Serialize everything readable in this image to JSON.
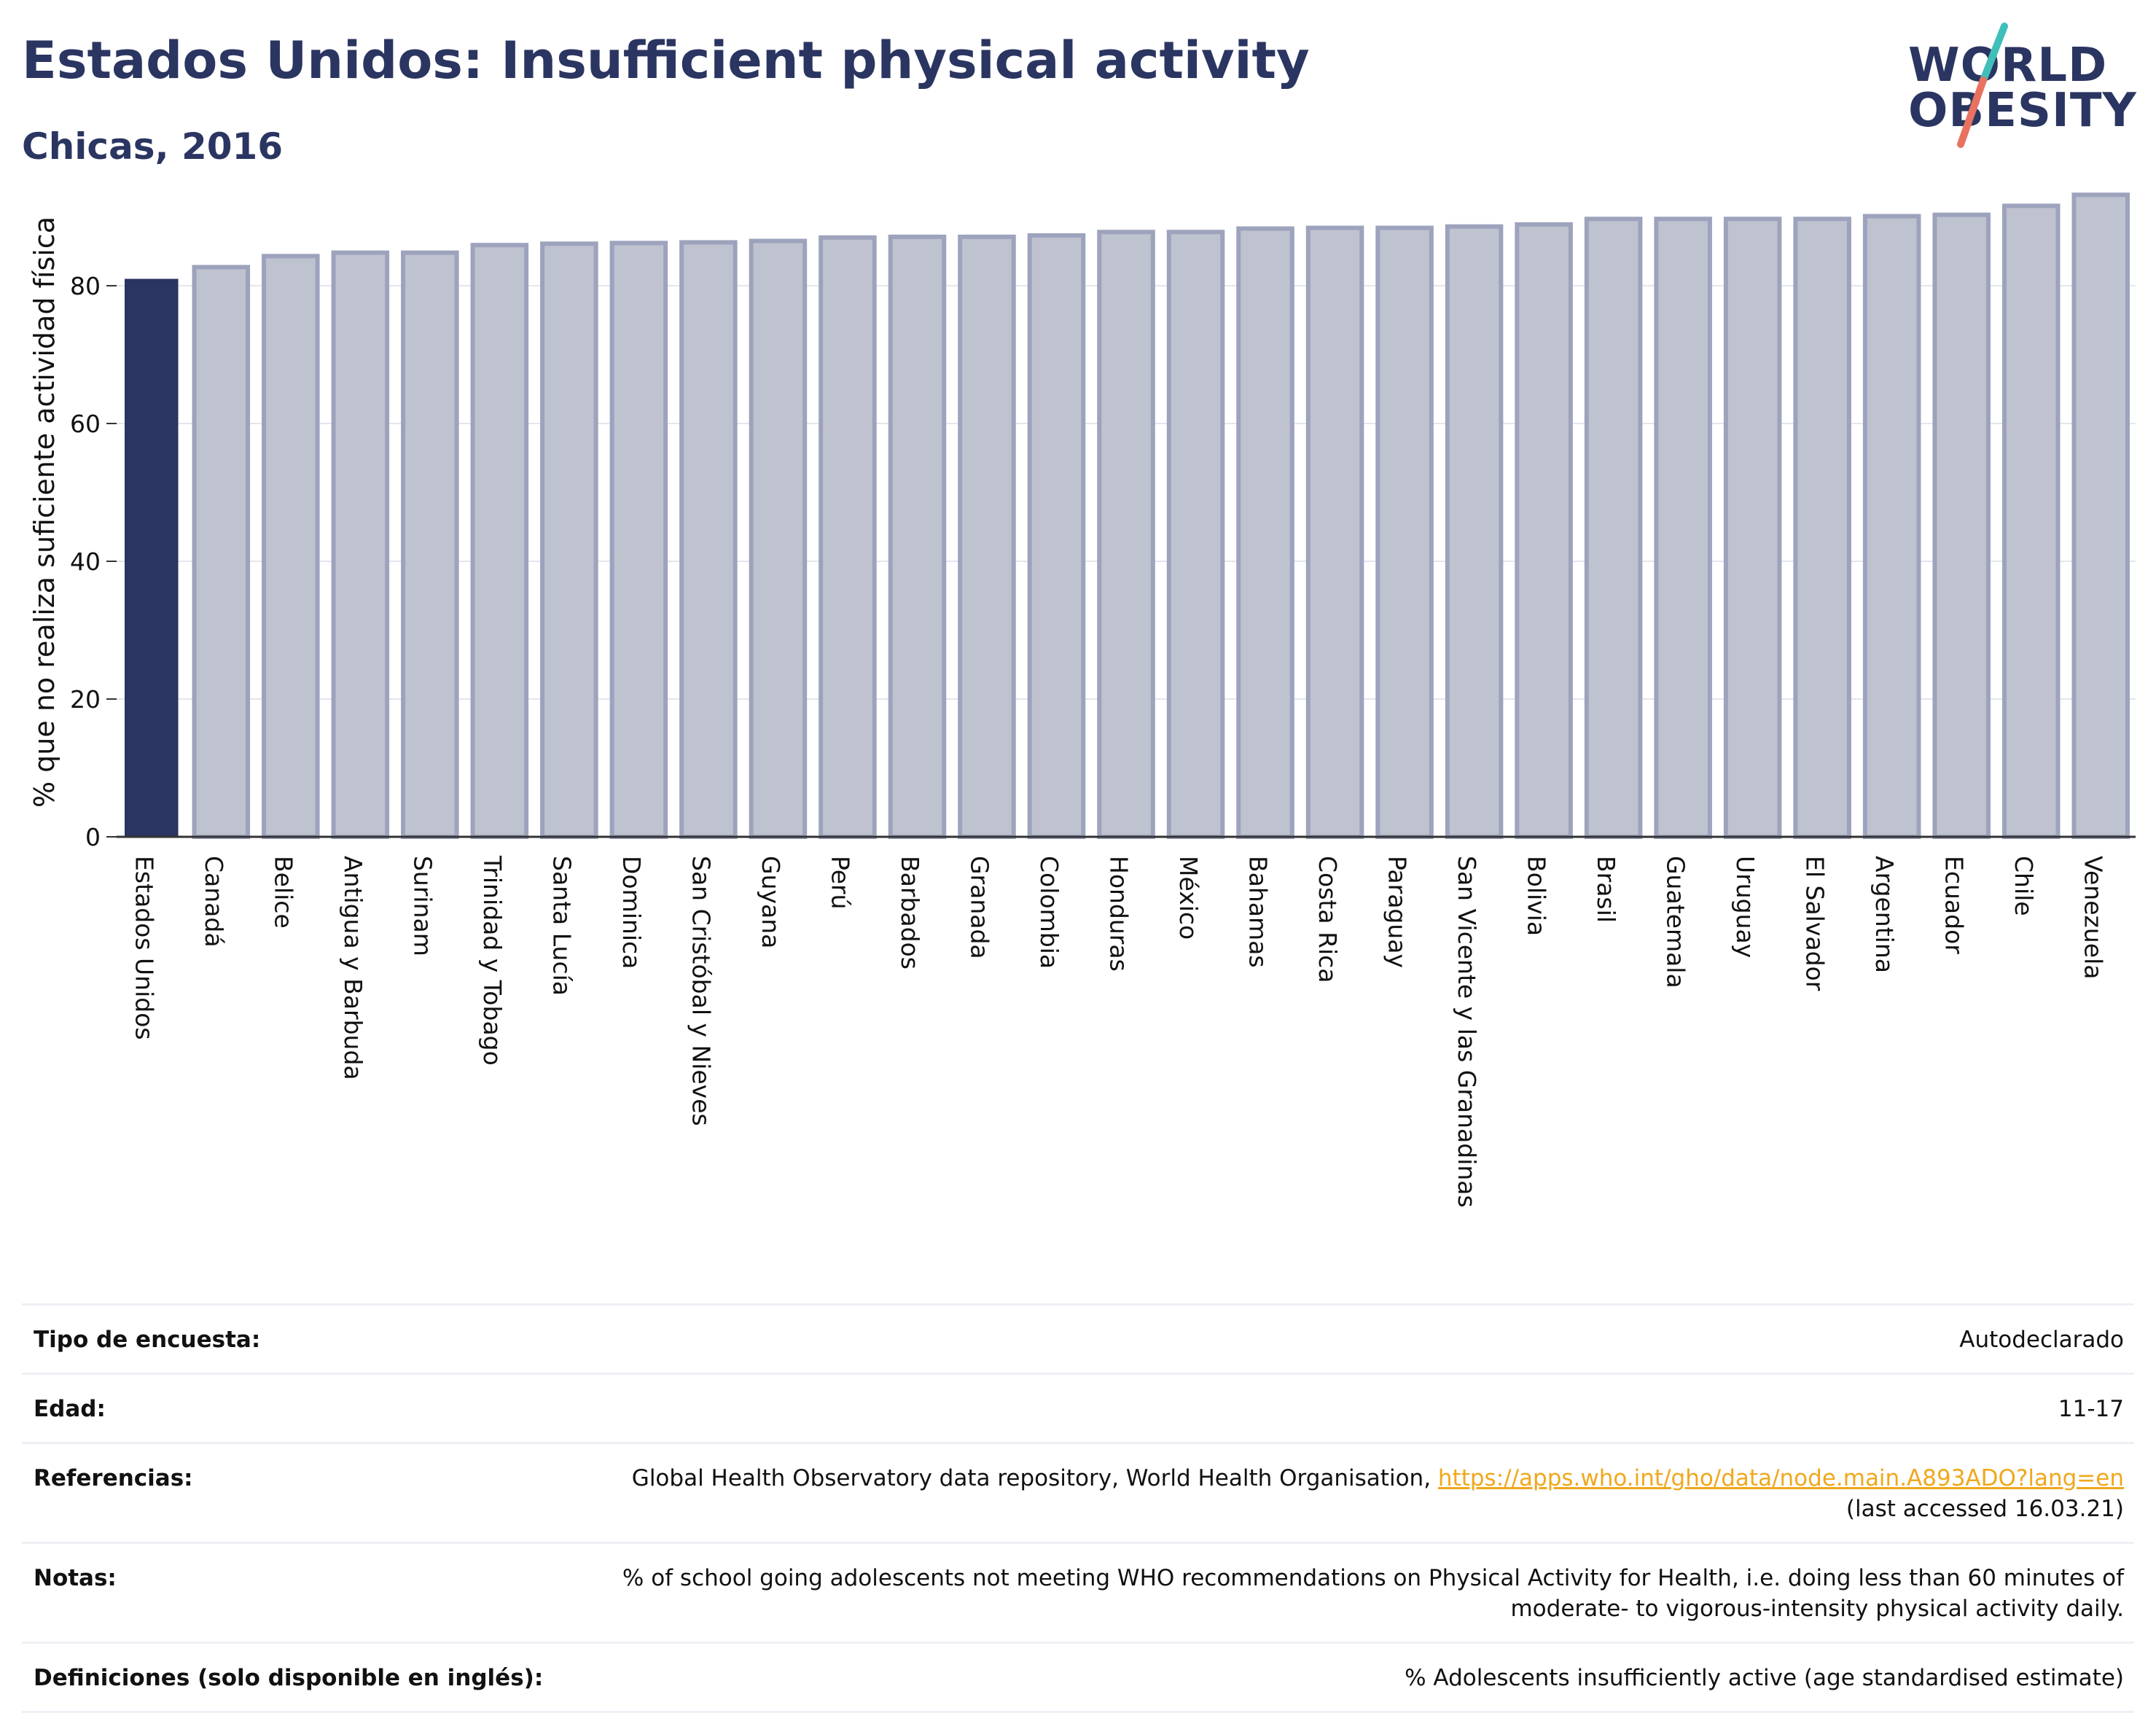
{
  "header": {
    "title": "Estados Unidos: Insufficient physical activity",
    "subtitle": "Chicas, 2016"
  },
  "logo": {
    "line1": "WORLD",
    "line2": "OBESITY",
    "accent_colors": [
      "#3fbfba",
      "#e8725f"
    ]
  },
  "colors": {
    "title": "#2b3561",
    "highlight_bar": "#2b3561",
    "other_bar_fill": "#bfc2cf",
    "other_bar_stroke": "#9da3bc",
    "link": "#f0a81c"
  },
  "chart_data": {
    "type": "bar",
    "title": "",
    "xlabel": "",
    "ylabel": "% que no realiza suficiente actividad física",
    "ylim": [
      0,
      95
    ],
    "yticks": [
      0,
      20,
      40,
      60,
      80
    ],
    "grid": true,
    "highlight": "Estados Unidos",
    "categories": [
      "Estados Unidos",
      "Canadá",
      "Belice",
      "Antigua y Barbuda",
      "Surinam",
      "Trinidad y Tobago",
      "Santa Lucía",
      "Dominica",
      "San Cristóbal y Nieves",
      "Guyana",
      "Perú",
      "Barbados",
      "Granada",
      "Colombia",
      "Honduras",
      "México",
      "Bahamas",
      "Costa Rica",
      "Paraguay",
      "San Vicente y las Granadinas",
      "Bolivia",
      "Brasil",
      "Guatemala",
      "Uruguay",
      "El Salvador",
      "Argentina",
      "Ecuador",
      "Chile",
      "Venezuela"
    ],
    "values": [
      81.0,
      82.7,
      84.3,
      84.8,
      84.8,
      85.9,
      86.1,
      86.2,
      86.3,
      86.5,
      87.0,
      87.1,
      87.1,
      87.3,
      87.8,
      87.8,
      88.3,
      88.4,
      88.4,
      88.6,
      88.9,
      89.7,
      89.7,
      89.7,
      89.7,
      90.1,
      90.3,
      91.6,
      93.2
    ]
  },
  "info": {
    "rows": [
      {
        "label": "Tipo de encuesta:",
        "value": "Autodeclarado"
      },
      {
        "label": "Edad:",
        "value": "11-17"
      },
      {
        "label": "Referencias:",
        "value": "Global Health Observatory data repository, World Health Organisation,",
        "link": "https://apps.who.int/gho/data/node.main.A893ADO?lang=en",
        "value_suffix": "(last accessed 16.03.21)"
      },
      {
        "label": "Notas:",
        "value": "% of school going adolescents not meeting WHO recommendations on Physical Activity for Health, i.e. doing less than 60 minutes of moderate- to vigorous-intensity physical activity daily."
      },
      {
        "label": "Definiciones (solo disponible en inglés):",
        "value": "% Adolescents insufficiently active (age standardised estimate)"
      }
    ]
  }
}
